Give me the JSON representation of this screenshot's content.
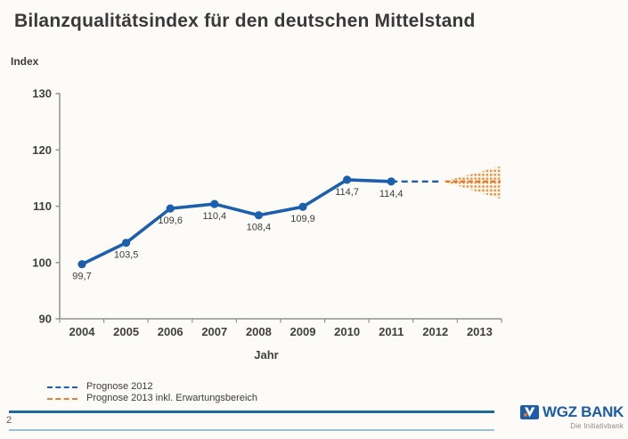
{
  "page": {
    "title": "Bilanzqualitätsindex für den deutschen Mittelstand"
  },
  "chart_data": {
    "type": "line",
    "title": "Bilanzqualitätsindex für den deutschen Mittelstand",
    "ylabel": "Index",
    "xlabel": "Jahr",
    "ylim": [
      90,
      130
    ],
    "yticks": [
      90,
      100,
      110,
      120,
      130
    ],
    "categories": [
      "2004",
      "2005",
      "2006",
      "2007",
      "2008",
      "2009",
      "2010",
      "2011",
      "2012",
      "2013"
    ],
    "series": [
      {
        "name": "Bilanzqualitätsindex",
        "years": [
          "2004",
          "2005",
          "2006",
          "2007",
          "2008",
          "2009",
          "2010",
          "2011"
        ],
        "values": [
          99.7,
          103.5,
          109.6,
          110.4,
          108.4,
          109.9,
          114.7,
          114.4
        ],
        "labels": [
          "99,7",
          "103,5",
          "109,6",
          "110,4",
          "108,4",
          "109,9",
          "114,7",
          "114,4"
        ]
      }
    ],
    "forecast_2012": {
      "style": "dashed-line",
      "from_year": "2011",
      "to_year": "2012",
      "value": 114.4
    },
    "forecast_2013": {
      "style": "dotted-fan",
      "from_year": "2012",
      "to_year": "2013",
      "center": 114.4,
      "upper_estimate": 117.1,
      "lower_estimate": 111.3
    },
    "legend": [
      {
        "label": "Prognose 2012",
        "color": "#1b5fae",
        "style": "dashed"
      },
      {
        "label": "Prognose 2013 inkl. Erwartungsbereich",
        "color": "#ed7d31",
        "style": "dashed"
      }
    ],
    "colors": {
      "line": "#1b5fae",
      "forecast_line": "#1b5fae",
      "fan_dots": "#f29340",
      "fan_center_line": "#e56c10",
      "axis": "#929292",
      "axis_text": "#3f3f3f",
      "data_label_text": "#3b3b3b"
    },
    "grid": "off",
    "legend_position": "bottom-left"
  },
  "footer": {
    "page_number": "2"
  },
  "logo": {
    "name": "WGZ BANK",
    "tagline": "Die Initiativbank"
  }
}
